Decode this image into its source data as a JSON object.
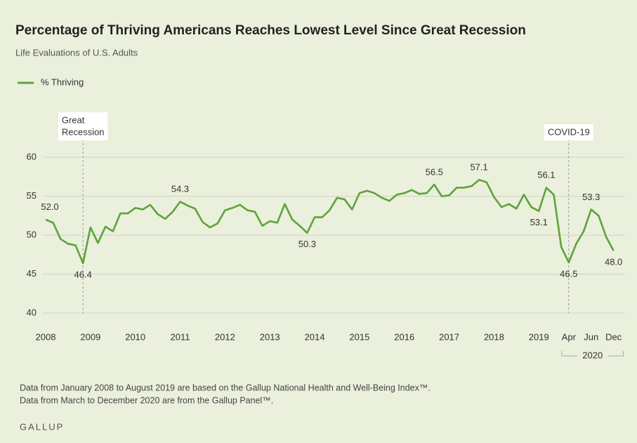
{
  "chart_data": {
    "type": "line",
    "title": "Percentage of Thriving Americans Reaches Lowest Level Since Great Recession",
    "subtitle": "Life Evaluations of U.S. Adults",
    "categories": [
      "2008",
      null,
      null,
      null,
      null,
      null,
      "2009",
      null,
      null,
      null,
      null,
      null,
      "2010",
      null,
      null,
      null,
      null,
      null,
      "2011",
      null,
      null,
      null,
      null,
      null,
      "2012",
      null,
      null,
      null,
      null,
      null,
      "2013",
      null,
      null,
      null,
      null,
      null,
      "2014",
      null,
      null,
      null,
      null,
      null,
      "2015",
      null,
      null,
      null,
      null,
      null,
      "2016",
      null,
      null,
      null,
      null,
      null,
      "2017",
      null,
      null,
      null,
      null,
      null,
      "2018",
      null,
      null,
      null,
      null,
      null,
      "2019",
      null,
      null,
      null,
      "Apr",
      null,
      null,
      "Jun",
      null,
      null,
      "Dec"
    ],
    "x_group_label": "2020",
    "series": [
      {
        "name": "% Thriving",
        "color": "#5fa23a",
        "values": [
          52.0,
          51.6,
          49.5,
          48.9,
          48.7,
          46.4,
          51.0,
          49.0,
          51.1,
          50.5,
          52.8,
          52.8,
          53.5,
          53.3,
          53.9,
          52.7,
          52.1,
          53.0,
          54.3,
          53.8,
          53.4,
          51.7,
          51.0,
          51.5,
          53.2,
          53.5,
          53.9,
          53.2,
          53.0,
          51.2,
          51.8,
          51.6,
          54.0,
          52.0,
          51.2,
          50.3,
          52.3,
          52.3,
          53.2,
          54.8,
          54.6,
          53.3,
          55.4,
          55.7,
          55.4,
          54.8,
          54.4,
          55.2,
          55.4,
          55.8,
          55.3,
          55.4,
          56.5,
          55.0,
          55.1,
          56.1,
          56.1,
          56.3,
          57.1,
          56.8,
          54.9,
          53.6,
          54.0,
          53.4,
          55.2,
          53.6,
          53.1,
          56.1,
          55.2,
          48.5,
          46.5,
          48.9,
          50.5,
          53.3,
          52.5,
          49.8,
          48.0
        ],
        "value_labels": [
          "52.0",
          null,
          null,
          null,
          null,
          "46.4",
          null,
          null,
          null,
          null,
          null,
          null,
          null,
          null,
          null,
          null,
          null,
          null,
          "54.3",
          null,
          null,
          null,
          null,
          null,
          null,
          null,
          null,
          null,
          null,
          null,
          null,
          null,
          null,
          null,
          null,
          "50.3",
          null,
          null,
          null,
          null,
          null,
          null,
          null,
          null,
          null,
          null,
          null,
          null,
          null,
          null,
          null,
          null,
          "56.5",
          null,
          null,
          null,
          null,
          null,
          "57.1",
          null,
          null,
          null,
          null,
          null,
          null,
          null,
          "53.1",
          "56.1",
          null,
          null,
          "46.5",
          null,
          null,
          "53.3",
          null,
          null,
          "48.0"
        ]
      }
    ],
    "ylim": [
      40,
      60
    ],
    "yticks": [
      40,
      45,
      50,
      55,
      60
    ],
    "grid": true,
    "legend": "top-left",
    "annotations": [
      {
        "lines": [
          "Great",
          "Recession"
        ]
      },
      {
        "lines": [
          "COVID-19"
        ]
      }
    ],
    "notes": [
      "Data from January 2008 to August 2019 are based on the Gallup National Health and Well-Being Index™.",
      "Data from March to December 2020 are from the Gallup Panel™."
    ],
    "source": "GALLUP"
  }
}
